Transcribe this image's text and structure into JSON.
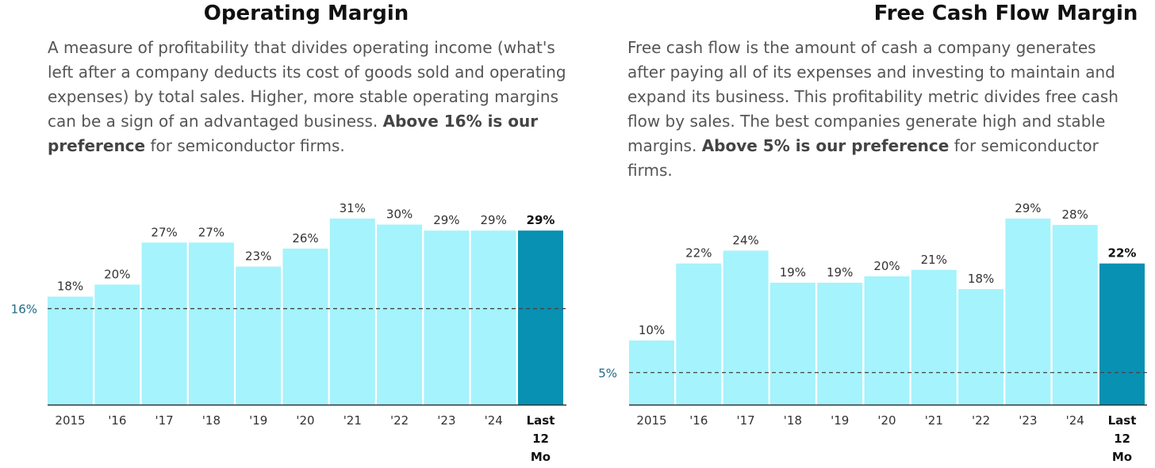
{
  "colors": {
    "bar": "#a5f3fc",
    "bar_highlight": "#0891b2",
    "reference_line": "#444444",
    "reference_label": "#1e6b86",
    "axis": "#333333"
  },
  "chart_data": [
    {
      "type": "bar",
      "title": "Operating Margin",
      "description": {
        "text": "A measure of profitability that divides operating income (what's left after a company deducts its cost of goods sold and operating expenses) by total sales. Higher, more stable operating margins can be a sign of an advantaged business.",
        "bold": "Above 16% is our preference",
        "suffix": "for semiconductor firms."
      },
      "categories": [
        "2015",
        "'16",
        "'17",
        "'18",
        "'19",
        "'20",
        "'21",
        "'22",
        "'23",
        "'24",
        "Last 12 Mo"
      ],
      "category_lines": [
        [
          "2015"
        ],
        [
          "'16"
        ],
        [
          "'17"
        ],
        [
          "'18"
        ],
        [
          "'19"
        ],
        [
          "'20"
        ],
        [
          "'21"
        ],
        [
          "'22"
        ],
        [
          "'23"
        ],
        [
          "'24"
        ],
        [
          "Last",
          "12",
          "Mo"
        ]
      ],
      "values": [
        18,
        20,
        27,
        27,
        23,
        26,
        31,
        30,
        29,
        29,
        29
      ],
      "data_labels": [
        "18%",
        "20%",
        "27%",
        "27%",
        "23%",
        "26%",
        "31%",
        "30%",
        "29%",
        "29%",
        "29%"
      ],
      "highlight_index": 10,
      "reference_line": {
        "value": 16,
        "label": "16%"
      },
      "ylim": [
        0,
        31
      ]
    },
    {
      "type": "bar",
      "title": "Free Cash Flow Margin",
      "description": {
        "text": "Free cash flow is the amount of cash a company generates after paying all of its expenses and investing to maintain and expand its business. This profitability metric divides free cash flow by sales. The best companies generate high and stable margins.",
        "bold": "Above 5% is our preference",
        "suffix": "for semiconductor firms."
      },
      "categories": [
        "2015",
        "'16",
        "'17",
        "'18",
        "'19",
        "'20",
        "'21",
        "'22",
        "'23",
        "'24",
        "Last 12 Mo"
      ],
      "category_lines": [
        [
          "2015"
        ],
        [
          "'16"
        ],
        [
          "'17"
        ],
        [
          "'18"
        ],
        [
          "'19"
        ],
        [
          "'20"
        ],
        [
          "'21"
        ],
        [
          "'22"
        ],
        [
          "'23"
        ],
        [
          "'24"
        ],
        [
          "Last",
          "12",
          "Mo"
        ]
      ],
      "values": [
        10,
        22,
        24,
        19,
        19,
        20,
        21,
        18,
        29,
        28,
        22
      ],
      "data_labels": [
        "10%",
        "22%",
        "24%",
        "19%",
        "19%",
        "20%",
        "21%",
        "18%",
        "29%",
        "28%",
        "22%"
      ],
      "highlight_index": 10,
      "reference_line": {
        "value": 5,
        "label": "5%"
      },
      "ylim": [
        0,
        29
      ]
    }
  ]
}
